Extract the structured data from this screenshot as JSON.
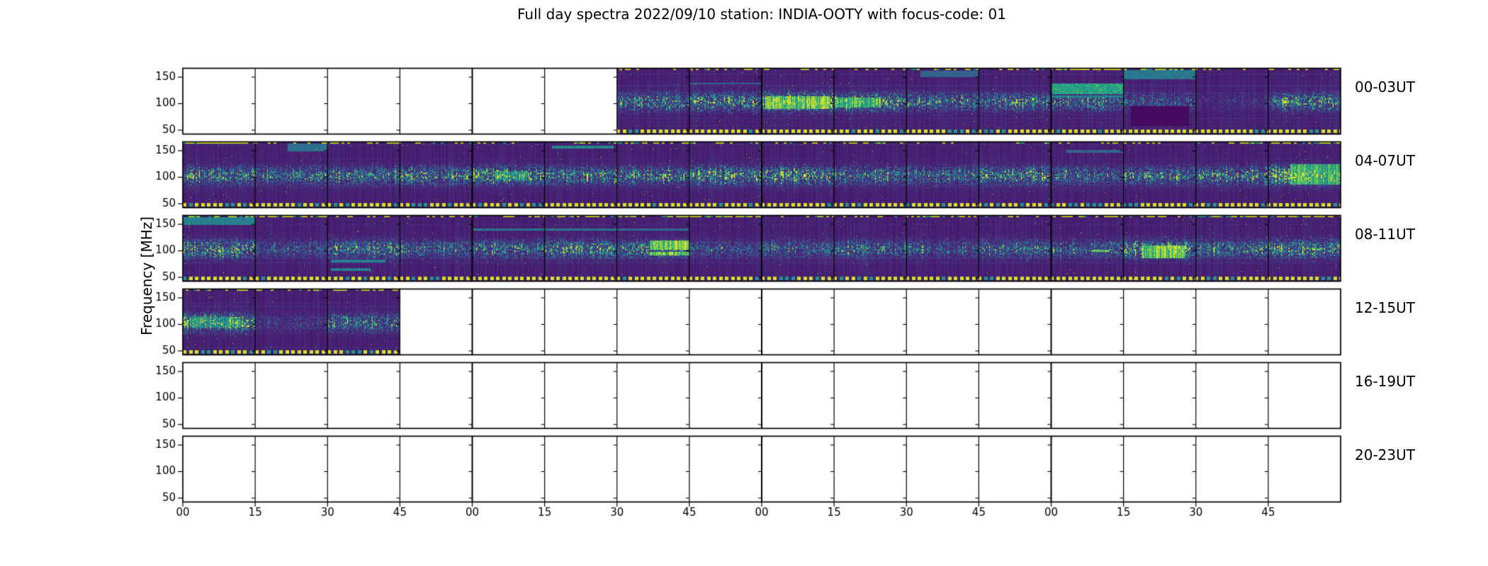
{
  "title": "Full day spectra 2022/09/10 station: INDIA-OOTY with focus-code: 01",
  "ylabel": "Frequency [MHz]",
  "chart_data": {
    "type": "heatmap",
    "subtype": "radio-spectrogram-grid",
    "colormap": "viridis",
    "date": "2022/09/10",
    "station": "INDIA-OOTY",
    "focus_code": "01",
    "segments_per_row": 16,
    "segment_minutes": 15,
    "hours_per_row": 4,
    "x_tick_labels_per_hour": [
      "00",
      "15",
      "30",
      "45"
    ],
    "freq_ticks": [
      150,
      100,
      50
    ],
    "freq_axis_range_mhz": [
      42,
      167
    ],
    "activity_band_center_mhz": 104,
    "activity_band_sigma_mhz": 10,
    "bottom_marker_freq_mhz": 47,
    "rows": [
      {
        "label": "00-03UT",
        "filled": [
          [
            6,
            15
          ]
        ],
        "intensity": [
          0,
          0,
          0,
          0,
          0,
          0,
          0.55,
          0.6,
          0.9,
          0.75,
          0.5,
          0.55,
          0.45,
          0.28,
          0.1,
          0.55
        ],
        "topdash": [
          0,
          0,
          0,
          0,
          0,
          0,
          0.25,
          0.55,
          0.35,
          0.25,
          0.35,
          0.4,
          0.85,
          0.5,
          0.2,
          0.35
        ],
        "events": [
          {
            "type": "blob",
            "seg": 8,
            "x": [
              0.05,
              0.95
            ],
            "freq": [
              92,
              114
            ],
            "v": 0.93
          },
          {
            "type": "blob",
            "seg": 9,
            "x": [
              0.0,
              0.65
            ],
            "freq": [
              94,
              112
            ],
            "v": 0.78
          },
          {
            "type": "hline",
            "seg": 7,
            "x": [
              0.0,
              1.0
            ],
            "freq": [
              138,
              140
            ],
            "v": 0.35
          },
          {
            "type": "hband",
            "seg": 12,
            "x": [
              0.0,
              1.0
            ],
            "freq": [
              119,
              138
            ],
            "v": 0.62,
            "sparkle": true
          },
          {
            "type": "hline",
            "seg": 12,
            "x": [
              0.0,
              1.0
            ],
            "freq": [
              113,
              115
            ],
            "v": 0.5
          },
          {
            "type": "topband",
            "seg": 13,
            "x": [
              0.0,
              1.0
            ],
            "freq": [
              148,
              164
            ],
            "v": 0.42
          },
          {
            "type": "dark",
            "seg": 13,
            "x": [
              0.1,
              0.9
            ],
            "freq": [
              60,
              95
            ],
            "v": 0.03
          },
          {
            "type": "topband",
            "seg": 10,
            "x": [
              0.2,
              1.0
            ],
            "freq": [
              152,
              162
            ],
            "v": 0.33
          }
        ]
      },
      {
        "label": "04-07UT",
        "filled": [
          [
            0,
            15
          ]
        ],
        "intensity": [
          0.55,
          0.45,
          0.5,
          0.6,
          0.72,
          0.5,
          0.55,
          0.75,
          0.7,
          0.5,
          0.45,
          0.62,
          0.4,
          0.5,
          0.55,
          0.9
        ],
        "topdash": [
          0.9,
          0.35,
          0.4,
          0.3,
          0.25,
          0.3,
          0.5,
          0.3,
          0.2,
          0.3,
          0.2,
          0.2,
          0.3,
          0.3,
          0.4,
          0.7
        ],
        "events": [
          {
            "type": "topband",
            "seg": 1,
            "x": [
              0.45,
              1.0
            ],
            "freq": [
              150,
              163
            ],
            "v": 0.38
          },
          {
            "type": "hline",
            "seg": 5,
            "x": [
              0.1,
              0.95
            ],
            "freq": [
              155,
              159
            ],
            "v": 0.55
          },
          {
            "type": "hline",
            "seg": 12,
            "x": [
              0.2,
              1.0
            ],
            "freq": [
              148,
              151
            ],
            "v": 0.38
          },
          {
            "type": "blob",
            "seg": 15,
            "x": [
              0.3,
              1.0
            ],
            "freq": [
              88,
              125
            ],
            "v": 0.8
          },
          {
            "type": "blob",
            "seg": 4,
            "x": [
              0.3,
              0.75
            ],
            "freq": [
              95,
              112
            ],
            "v": 0.6
          }
        ]
      },
      {
        "label": "08-11UT",
        "filled": [
          [
            0,
            15
          ]
        ],
        "intensity": [
          0.78,
          0.28,
          0.55,
          0.4,
          0.5,
          0.62,
          0.55,
          0.28,
          0.35,
          0.4,
          0.3,
          0.45,
          0.38,
          0.8,
          0.5,
          0.6
        ],
        "topdash": [
          0.4,
          0.7,
          0.3,
          0.3,
          0.4,
          0.5,
          0.6,
          0.8,
          0.3,
          0.3,
          0.5,
          0.4,
          0.6,
          0.5,
          0.8,
          0.6
        ],
        "events": [
          {
            "type": "topband",
            "seg": 0,
            "x": [
              0.0,
              1.0
            ],
            "freq": [
              150,
              164
            ],
            "v": 0.45
          },
          {
            "type": "hline",
            "seg": 2,
            "x": [
              0.05,
              0.8
            ],
            "freq": [
              80,
              83
            ],
            "v": 0.5
          },
          {
            "type": "hline",
            "seg": 2,
            "x": [
              0.05,
              0.6
            ],
            "freq": [
              64,
              67
            ],
            "v": 0.5
          },
          {
            "type": "hline",
            "seg": 4,
            "x": [
              0.0,
              1.0
            ],
            "freq": [
              140,
              142
            ],
            "v": 0.45
          },
          {
            "type": "hline",
            "seg": 5,
            "x": [
              0.0,
              1.0
            ],
            "freq": [
              140,
              142
            ],
            "v": 0.45
          },
          {
            "type": "hline",
            "seg": 6,
            "x": [
              0.0,
              1.0
            ],
            "freq": [
              140,
              142
            ],
            "v": 0.4
          },
          {
            "type": "blob",
            "seg": 6,
            "x": [
              0.45,
              1.0
            ],
            "freq": [
              104,
              120
            ],
            "v": 0.98
          },
          {
            "type": "blob",
            "seg": 6,
            "x": [
              0.45,
              1.0
            ],
            "freq": [
              93,
              98
            ],
            "v": 0.96
          },
          {
            "type": "hline",
            "seg": 12,
            "x": [
              0.55,
              0.8
            ],
            "freq": [
              99,
              102
            ],
            "v": 0.85
          },
          {
            "type": "blob",
            "seg": 13,
            "x": [
              0.25,
              0.85
            ],
            "freq": [
              88,
              110
            ],
            "v": 0.9
          }
        ]
      },
      {
        "label": "12-15UT",
        "filled": [
          [
            0,
            2
          ]
        ],
        "intensity": [
          0.72,
          0.15,
          0.5,
          0,
          0,
          0,
          0,
          0,
          0,
          0,
          0,
          0,
          0,
          0,
          0,
          0
        ],
        "topdash": [
          0.5,
          0.4,
          0.5,
          0,
          0,
          0,
          0,
          0,
          0,
          0,
          0,
          0,
          0,
          0,
          0,
          0
        ],
        "events": [
          {
            "type": "blob",
            "seg": 0,
            "x": [
              0.1,
              0.8
            ],
            "freq": [
              95,
              114
            ],
            "v": 0.62
          }
        ]
      },
      {
        "label": "16-19UT",
        "filled": [],
        "intensity": [
          0,
          0,
          0,
          0,
          0,
          0,
          0,
          0,
          0,
          0,
          0,
          0,
          0,
          0,
          0,
          0
        ],
        "topdash": [
          0,
          0,
          0,
          0,
          0,
          0,
          0,
          0,
          0,
          0,
          0,
          0,
          0,
          0,
          0,
          0
        ],
        "events": []
      },
      {
        "label": "20-23UT",
        "filled": [],
        "intensity": [
          0,
          0,
          0,
          0,
          0,
          0,
          0,
          0,
          0,
          0,
          0,
          0,
          0,
          0,
          0,
          0
        ],
        "topdash": [
          0,
          0,
          0,
          0,
          0,
          0,
          0,
          0,
          0,
          0,
          0,
          0,
          0,
          0,
          0,
          0
        ],
        "events": []
      }
    ]
  }
}
